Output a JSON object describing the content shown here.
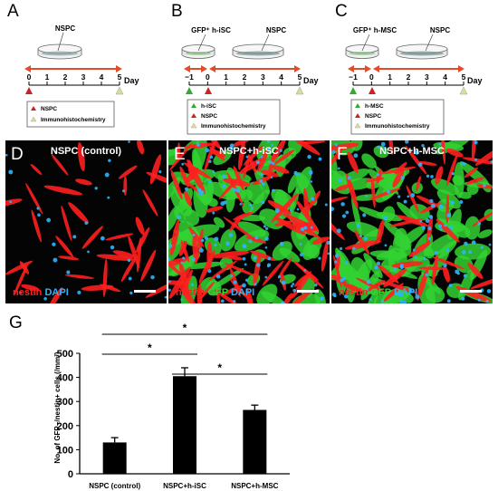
{
  "panel_a": {
    "letter": "A",
    "dish_label": "NSPC",
    "ticks": [
      "0",
      "1",
      "2",
      "3",
      "4",
      "5"
    ],
    "day_label": "Day",
    "legend": [
      "NSPC",
      "Immunohistochemistry"
    ]
  },
  "panel_b": {
    "letter": "B",
    "dish1_label": "GFP⁺ h-iSC",
    "dish2_label": "NSPC",
    "ticks": [
      "−1",
      "0",
      "1",
      "2",
      "3",
      "4",
      "5"
    ],
    "day_label": "Day",
    "legend": [
      "h-iSC",
      "NSPC",
      "Immunohistochemistry"
    ]
  },
  "panel_c": {
    "letter": "C",
    "dish1_label": "GFP⁺ h-MSC",
    "dish2_label": "NSPC",
    "ticks": [
      "−1",
      "0",
      "1",
      "2",
      "3",
      "4",
      "5"
    ],
    "day_label": "Day",
    "legend": [
      "h-MSC",
      "NSPC",
      "Immunohistochemistry"
    ]
  },
  "panel_d": {
    "letter": "D",
    "title": "NSPC (control)",
    "stain": [
      "nestin",
      "DAPI"
    ]
  },
  "panel_e": {
    "letter": "E",
    "title": "NSPC+h-iSC",
    "stain": [
      "nestin",
      "GFP",
      "DAPI"
    ]
  },
  "panel_f": {
    "letter": "F",
    "title": "NSPC+h-MSC",
    "stain": [
      "nestin",
      "GFP",
      "DAPI"
    ]
  },
  "colors": {
    "red_marker": "#cc2222",
    "green_marker": "#33aa33",
    "yellow_marker": "#dddd99",
    "timeline": "#e34b2a",
    "nestin": "#ff1f1f",
    "gfp": "#32d232",
    "dapi": "#2db4ff"
  },
  "panel_g": {
    "letter": "G",
    "significance_mark": "*"
  },
  "chart_data": {
    "type": "bar",
    "categories": [
      "NSPC (control)",
      "NSPC+h-iSC",
      "NSPC+h-MSC"
    ],
    "values": [
      130,
      405,
      265
    ],
    "errors": [
      20,
      35,
      20
    ],
    "ylabel": "No. of GFP−/nestin+ cells (/mm²)",
    "ylim": [
      0,
      500
    ],
    "yticks": [
      "0",
      "100",
      "200",
      "300",
      "400",
      "500"
    ],
    "significance": [
      "*",
      "*",
      "*"
    ],
    "grid": false
  }
}
